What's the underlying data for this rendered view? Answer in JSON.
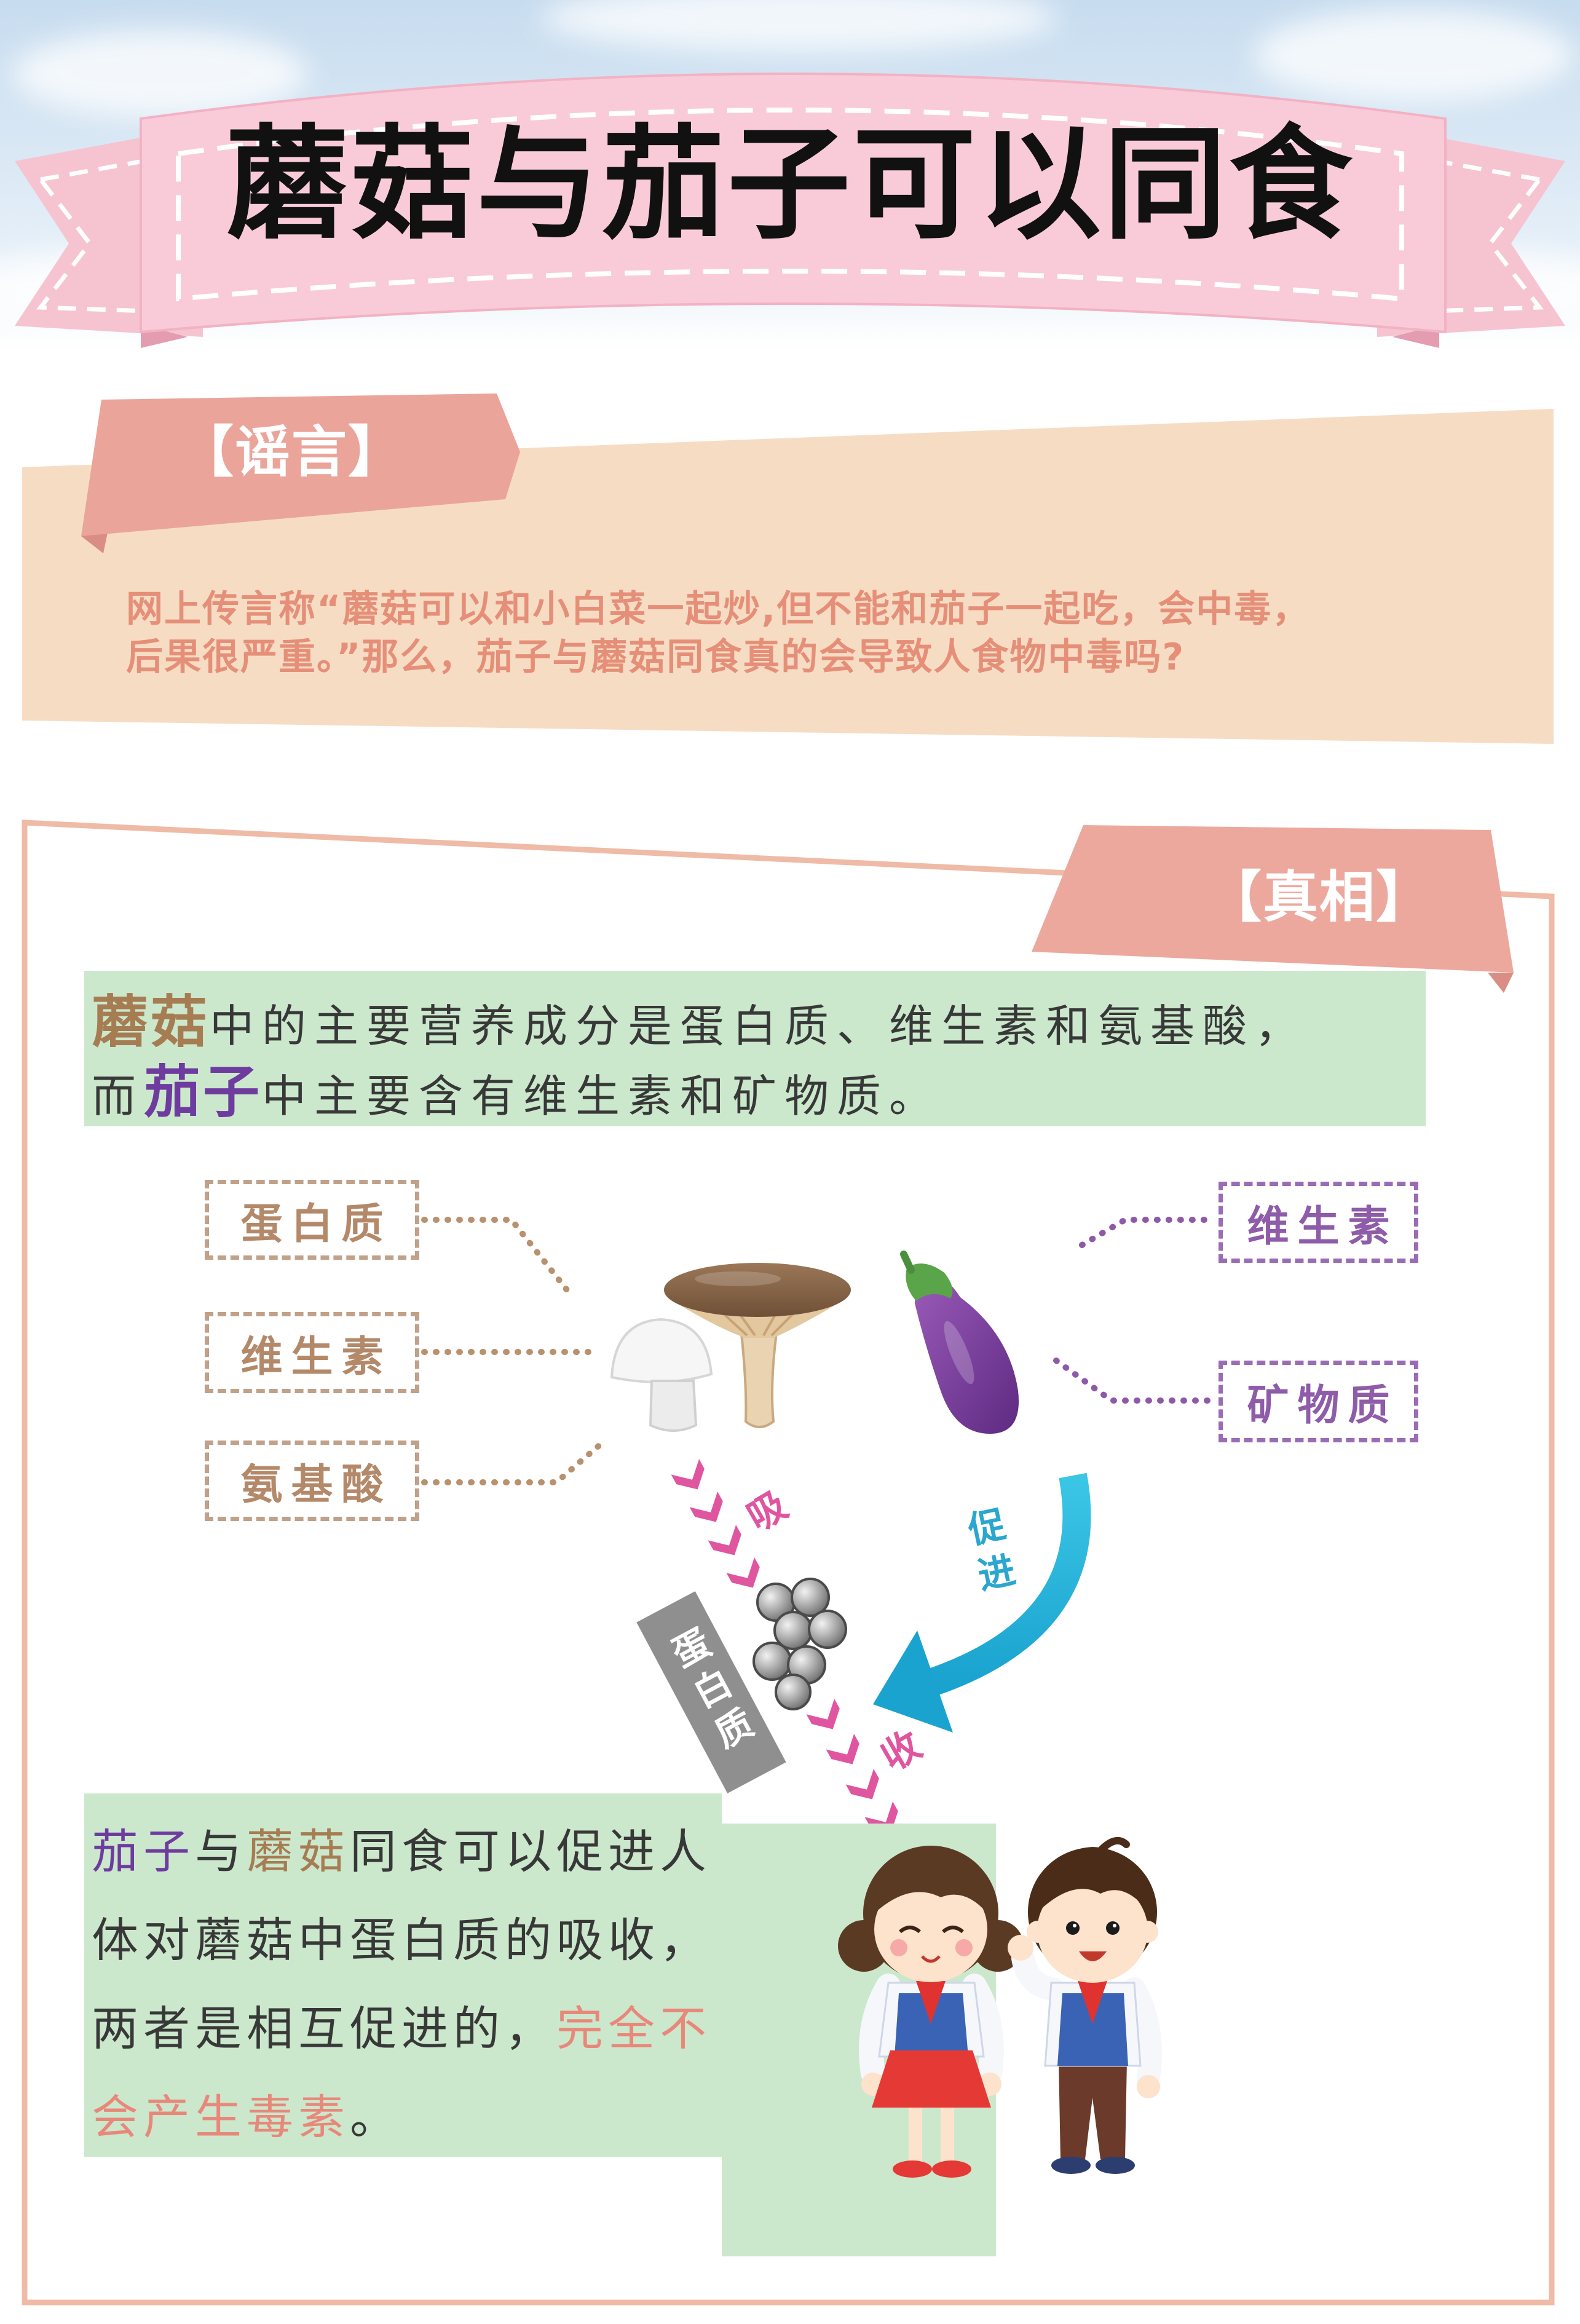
{
  "title": "蘑菇与茄子可以同食",
  "rumor": {
    "tab_label": "【谣言】",
    "lines": [
      "网上传言称“蘑菇可以和小白菜一起炒,但不能和茄子一起吃，会中毒，",
      "后果很严重。”那么，茄子与蘑菇同食真的会导致人食物中毒吗?"
    ]
  },
  "truth": {
    "tab_label": "【真相】",
    "intro": {
      "line1": {
        "mushroom": "蘑菇",
        "rest": "中的主要营养成分是蛋白质、维生素和氨基酸，"
      },
      "line2": {
        "lead": "而",
        "eggplant": "茄子",
        "rest": "中主要含有维生素和矿物质。"
      }
    },
    "diagram": {
      "mushroom_nutrients": [
        "蛋白质",
        "维生素",
        "氨基酸"
      ],
      "eggplant_nutrients": [
        "维生素",
        "矿物质"
      ],
      "absorb_chars": [
        "吸",
        "收"
      ],
      "promote_label": "促进",
      "protein_block_label": "蛋白质"
    },
    "conclusion": {
      "line1": {
        "eggplant": "茄子",
        "connector": "与",
        "mushroom": "蘑菇",
        "rest": "同食可以促进人"
      },
      "line2": "体对蘑菇中蛋白质的吸收，",
      "line3": {
        "text": "两者是相互促进的，",
        "highlight": "完全不"
      },
      "line4": {
        "highlight": "会产生毒素",
        "end": "。"
      }
    }
  },
  "icons": [
    "mushroom-icon",
    "eggplant-icon",
    "protein-molecule-icon",
    "absorb-arrow-icon",
    "promote-arrow-icon",
    "girl-illustration",
    "boy-illustration"
  ],
  "colors": {
    "title_ribbon": "#f9cbd8",
    "tab": "#eca89d",
    "rumor_band": "#f7dcc4",
    "rumor_text": "#e58f79",
    "green_box": "#cbe8cd",
    "mushroom_text": "#a67c52",
    "eggplant_text": "#6e3b9e",
    "highlight_text": "#e8887a",
    "absorb_arrow": "#e0559f",
    "promote_arrow": "#29b4d8"
  }
}
